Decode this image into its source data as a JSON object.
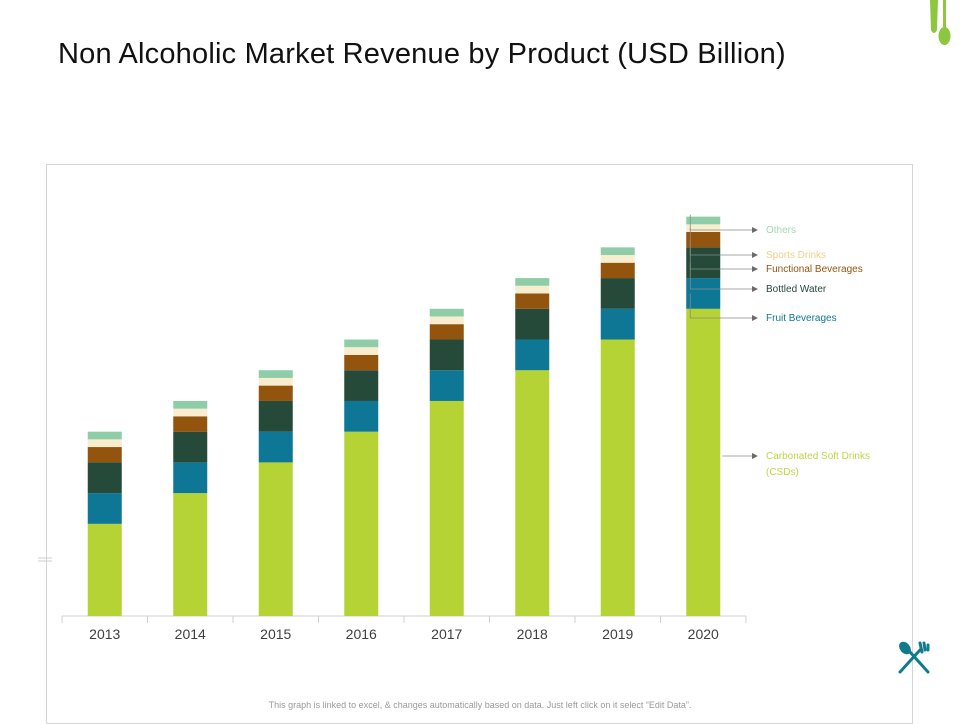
{
  "title": "Non Alcoholic Market Revenue by Product (USD Billion)",
  "footer_note": "This graph is linked to excel, & changes automatically based on data. Just left click on it select “Edit Data”.",
  "icons": {
    "logo": "cutlery-logo-icon",
    "utensils": "fork-knife-icon"
  },
  "colors": {
    "accent": "#8dc63f",
    "utensils": "#0f7c8c"
  },
  "chart_data": {
    "type": "bar",
    "stacked": true,
    "categories": [
      "2013",
      "2014",
      "2015",
      "2016",
      "2017",
      "2018",
      "2019",
      "2020"
    ],
    "ylim": [
      0,
      12.5
    ],
    "grid": false,
    "xlabel": "",
    "ylabel": "",
    "series": [
      {
        "name": "Carbonated Soft Drinks (CSDs)",
        "legend_lines": [
          "Carbonated Soft Drinks",
          "(CSDs)"
        ],
        "color": "#b5d334",
        "values": [
          3,
          4,
          5,
          6,
          7,
          8,
          9,
          10
        ]
      },
      {
        "name": "Fruit Beverages",
        "legend_lines": [
          "Fruit Beverages"
        ],
        "color": "#0f7796",
        "values": [
          1,
          1,
          1,
          1,
          1,
          1,
          1,
          1
        ]
      },
      {
        "name": "Bottled Water",
        "legend_lines": [
          "Bottled Water"
        ],
        "color": "#264a3a",
        "values": [
          1,
          1,
          1,
          1,
          1,
          1,
          1,
          1
        ]
      },
      {
        "name": "Functional Beverages",
        "legend_lines": [
          "Functional Beverages"
        ],
        "color": "#93540e",
        "values": [
          0.5,
          0.5,
          0.5,
          0.5,
          0.5,
          0.5,
          0.5,
          0.5
        ]
      },
      {
        "name": "Sports Drinks",
        "legend_lines": [
          "Sports Drinks"
        ],
        "color": "#f8edce",
        "values": [
          0.25,
          0.25,
          0.25,
          0.25,
          0.25,
          0.25,
          0.25,
          0.25
        ]
      },
      {
        "name": "Others",
        "legend_lines": [
          "Others"
        ],
        "color": "#8ecda7",
        "values": [
          0.25,
          0.25,
          0.25,
          0.25,
          0.25,
          0.25,
          0.25,
          0.25
        ]
      }
    ],
    "legend_text_colors": [
      "#c2d448",
      "#0f7796",
      "#264a3a",
      "#93540e",
      "#f2cf86",
      "#a9d4b8"
    ],
    "legend_placement": "right, labels attached to final bar"
  }
}
